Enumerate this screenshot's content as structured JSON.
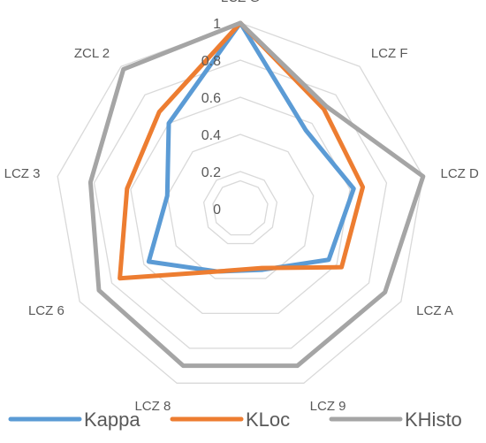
{
  "chart_data": {
    "type": "radar",
    "categories": [
      "LCZ G",
      "LCZ F",
      "LCZ D",
      "LCZ A",
      "LCZ 9",
      "LCZ 8",
      "LCZ 6",
      "LCZ 3",
      "ZCL 2"
    ],
    "ticks": [
      "0",
      "0.2",
      "0.4",
      "0.6",
      "0.8",
      "1"
    ],
    "rlim": [
      0,
      1
    ],
    "grid": true,
    "legend": "bottom",
    "series": [
      {
        "name": "Kappa",
        "color": "#5b9bd5",
        "values": [
          1.0,
          0.55,
          0.62,
          0.55,
          0.35,
          0.36,
          0.57,
          0.4,
          0.6
        ]
      },
      {
        "name": "KLoc",
        "color": "#ed7d31",
        "values": [
          1.0,
          0.7,
          0.67,
          0.63,
          0.34,
          0.36,
          0.75,
          0.62,
          0.68
        ]
      },
      {
        "name": "KHisto",
        "color": "#a5a5a5",
        "values": [
          1.0,
          0.72,
          1.0,
          0.9,
          0.9,
          0.9,
          0.88,
          0.82,
          0.98
        ]
      }
    ]
  }
}
